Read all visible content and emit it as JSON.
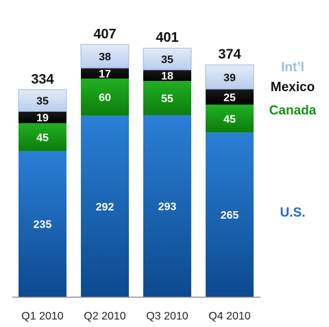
{
  "chart_data": {
    "type": "bar",
    "stacked": true,
    "categories": [
      "Q1 2010",
      "Q2 2010",
      "Q3 2010",
      "Q4 2010"
    ],
    "series": [
      {
        "name": "U.S.",
        "values": [
          235,
          292,
          293,
          265
        ],
        "color": "#1f6fc5",
        "label_color": "#ffffff"
      },
      {
        "name": "Canada",
        "values": [
          45,
          60,
          55,
          45
        ],
        "color": "#1a9b1a",
        "label_color": "#ffffff"
      },
      {
        "name": "Mexico",
        "values": [
          19,
          17,
          18,
          25
        ],
        "color": "#050505",
        "label_color": "#ffffff"
      },
      {
        "name": "Int’l",
        "values": [
          35,
          38,
          35,
          39
        ],
        "color": "#c9d8f2",
        "label_color": "#111111"
      }
    ],
    "totals": [
      334,
      407,
      401,
      374
    ],
    "ylim": [
      0,
      430
    ],
    "legend": {
      "placement": "right",
      "items": [
        {
          "text": "Int’l",
          "color": "#9bbbe3",
          "series": "Int’l"
        },
        {
          "text": "Mexico",
          "color": "#111111",
          "series": "Mexico"
        },
        {
          "text": "Canada",
          "color": "#119411",
          "series": "Canada"
        },
        {
          "text": "U.S.",
          "color": "#1f6fc5",
          "series": "U.S."
        }
      ]
    },
    "title": "",
    "xlabel": "",
    "ylabel": "",
    "grid": false
  }
}
